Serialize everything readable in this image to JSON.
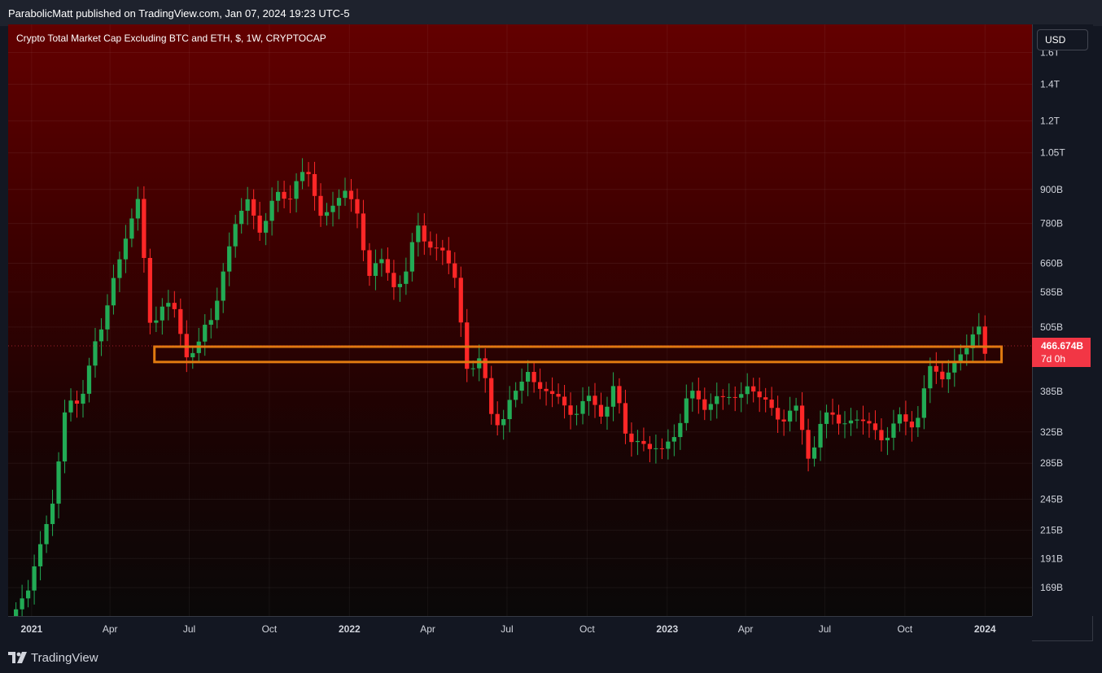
{
  "header": {
    "publisher_line": "ParabolicMatt published on TradingView.com, Jan 07, 2024 19:23 UTC-5"
  },
  "chart": {
    "title": "Crypto Total Market Cap Excluding BTC and ETH, $, 1W, CRYPTOCAP",
    "currency_button": "USD",
    "last_price": "466.674B",
    "countdown": "7d 0h"
  },
  "colors": {
    "up": "#26a69a",
    "up_candle": "#22ab55",
    "down_candle": "#ff2727",
    "zone": "#e07a10",
    "price_tag": "#f23645"
  },
  "footer": {
    "brand": "TradingView",
    "logo_icon": "tradingview-logo-icon"
  },
  "chart_data": {
    "type": "candlestick",
    "title": "Crypto Total Market Cap Excluding BTC and ETH, $, 1W, CRYPTOCAP",
    "y_scale": "log",
    "y_ticks": [
      {
        "label": "1.6T",
        "value": 1600
      },
      {
        "label": "1.4T",
        "value": 1400
      },
      {
        "label": "1.2T",
        "value": 1200
      },
      {
        "label": "1.05T",
        "value": 1050
      },
      {
        "label": "900B",
        "value": 900
      },
      {
        "label": "780B",
        "value": 780
      },
      {
        "label": "660B",
        "value": 660
      },
      {
        "label": "585B",
        "value": 585
      },
      {
        "label": "505B",
        "value": 505
      },
      {
        "label": "385B",
        "value": 385
      },
      {
        "label": "325B",
        "value": 325
      },
      {
        "label": "285B",
        "value": 285
      },
      {
        "label": "245B",
        "value": 245
      },
      {
        "label": "215B",
        "value": 215
      },
      {
        "label": "191B",
        "value": 191
      },
      {
        "label": "169B",
        "value": 169
      }
    ],
    "x_ticks": [
      {
        "label": "2021",
        "date": "2021-01-01",
        "bold": true
      },
      {
        "label": "Apr",
        "date": "2021-04-01"
      },
      {
        "label": "Jul",
        "date": "2021-07-01"
      },
      {
        "label": "Oct",
        "date": "2021-10-01"
      },
      {
        "label": "2022",
        "date": "2022-01-01",
        "bold": true
      },
      {
        "label": "Apr",
        "date": "2022-04-01"
      },
      {
        "label": "Jul",
        "date": "2022-07-01"
      },
      {
        "label": "Oct",
        "date": "2022-10-01"
      },
      {
        "label": "2023",
        "date": "2023-01-01",
        "bold": true
      },
      {
        "label": "Apr",
        "date": "2023-04-01"
      },
      {
        "label": "Jul",
        "date": "2023-07-01"
      },
      {
        "label": "Oct",
        "date": "2023-10-01"
      },
      {
        "label": "2024",
        "date": "2024-01-01",
        "bold": true
      }
    ],
    "date_range": [
      "2020-12-05",
      "2024-02-24"
    ],
    "y_range": [
      150,
      1800
    ],
    "last_price": 466.674,
    "zone": {
      "from": "2021-05-22",
      "to": "2024-01-20",
      "low": 436,
      "high": 465
    },
    "weekly_closes": [
      {
        "date": "2020-12-14",
        "close": 157
      },
      {
        "date": "2020-12-28",
        "close": 165
      },
      {
        "date": "2021-01-11",
        "close": 200
      },
      {
        "date": "2021-01-25",
        "close": 250
      },
      {
        "date": "2021-02-08",
        "close": 340
      },
      {
        "date": "2021-02-22",
        "close": 370
      },
      {
        "date": "2021-03-08",
        "close": 440
      },
      {
        "date": "2021-03-22",
        "close": 480
      },
      {
        "date": "2021-04-05",
        "close": 640
      },
      {
        "date": "2021-04-19",
        "close": 730
      },
      {
        "date": "2021-05-03",
        "close": 850
      },
      {
        "date": "2021-05-17",
        "close": 520
      },
      {
        "date": "2021-05-31",
        "close": 560
      },
      {
        "date": "2021-06-14",
        "close": 520
      },
      {
        "date": "2021-06-28",
        "close": 470
      },
      {
        "date": "2021-07-12",
        "close": 460
      },
      {
        "date": "2021-07-26",
        "close": 520
      },
      {
        "date": "2021-08-09",
        "close": 650
      },
      {
        "date": "2021-08-23",
        "close": 770
      },
      {
        "date": "2021-09-06",
        "close": 850
      },
      {
        "date": "2021-09-20",
        "close": 780
      },
      {
        "date": "2021-10-04",
        "close": 830
      },
      {
        "date": "2021-10-18",
        "close": 870
      },
      {
        "date": "2021-11-01",
        "close": 960
      },
      {
        "date": "2021-11-15",
        "close": 920
      },
      {
        "date": "2021-11-29",
        "close": 830
      },
      {
        "date": "2021-12-13",
        "close": 840
      },
      {
        "date": "2021-12-27",
        "close": 880
      },
      {
        "date": "2022-01-10",
        "close": 820
      },
      {
        "date": "2022-01-24",
        "close": 640
      },
      {
        "date": "2022-02-07",
        "close": 640
      },
      {
        "date": "2022-02-21",
        "close": 630
      },
      {
        "date": "2022-03-07",
        "close": 620
      },
      {
        "date": "2022-03-21",
        "close": 770
      },
      {
        "date": "2022-04-04",
        "close": 720
      },
      {
        "date": "2022-04-18",
        "close": 690
      },
      {
        "date": "2022-05-02",
        "close": 610
      },
      {
        "date": "2022-05-16",
        "close": 440
      },
      {
        "date": "2022-05-30",
        "close": 430
      },
      {
        "date": "2022-06-13",
        "close": 350
      },
      {
        "date": "2022-06-27",
        "close": 355
      },
      {
        "date": "2022-07-11",
        "close": 370
      },
      {
        "date": "2022-07-25",
        "close": 430
      },
      {
        "date": "2022-08-08",
        "close": 390
      },
      {
        "date": "2022-08-22",
        "close": 375
      },
      {
        "date": "2022-09-05",
        "close": 365
      },
      {
        "date": "2022-09-19",
        "close": 360
      },
      {
        "date": "2022-10-03",
        "close": 360
      },
      {
        "date": "2022-10-17",
        "close": 365
      },
      {
        "date": "2022-10-31",
        "close": 385
      },
      {
        "date": "2022-11-14",
        "close": 320
      },
      {
        "date": "2022-11-28",
        "close": 320
      },
      {
        "date": "2022-12-12",
        "close": 300
      },
      {
        "date": "2022-12-26",
        "close": 297
      },
      {
        "date": "2023-01-09",
        "close": 330
      },
      {
        "date": "2023-01-23",
        "close": 365
      },
      {
        "date": "2023-02-06",
        "close": 370
      },
      {
        "date": "2023-02-20",
        "close": 380
      },
      {
        "date": "2023-03-06",
        "close": 360
      },
      {
        "date": "2023-03-20",
        "close": 385
      },
      {
        "date": "2023-04-03",
        "close": 395
      },
      {
        "date": "2023-04-17",
        "close": 370
      },
      {
        "date": "2023-05-01",
        "close": 360
      },
      {
        "date": "2023-05-15",
        "close": 350
      },
      {
        "date": "2023-05-29",
        "close": 345
      },
      {
        "date": "2023-06-12",
        "close": 305
      },
      {
        "date": "2023-06-26",
        "close": 330
      },
      {
        "date": "2023-07-10",
        "close": 345
      },
      {
        "date": "2023-07-24",
        "close": 345
      },
      {
        "date": "2023-08-07",
        "close": 340
      },
      {
        "date": "2023-08-21",
        "close": 330
      },
      {
        "date": "2023-09-04",
        "close": 325
      },
      {
        "date": "2023-09-18",
        "close": 330
      },
      {
        "date": "2023-10-02",
        "close": 335
      },
      {
        "date": "2023-10-16",
        "close": 360
      },
      {
        "date": "2023-10-30",
        "close": 410
      },
      {
        "date": "2023-11-13",
        "close": 415
      },
      {
        "date": "2023-11-27",
        "close": 440
      },
      {
        "date": "2023-12-11",
        "close": 455
      },
      {
        "date": "2023-12-25",
        "close": 505
      },
      {
        "date": "2024-01-01",
        "close": 467
      }
    ]
  }
}
